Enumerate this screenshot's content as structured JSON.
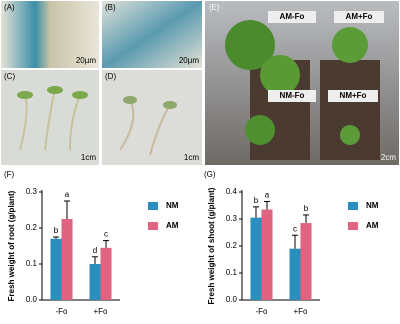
{
  "photos": [
    {
      "label": "(A)",
      "scale": "20µm"
    },
    {
      "label": "(B)",
      "scale": "20µm"
    },
    {
      "label": "(C)",
      "scale": "1cm"
    },
    {
      "label": "(D)",
      "scale": "1cm"
    },
    {
      "label": "(E)",
      "scale": "2cm",
      "tags": [
        "AM-Fo",
        "AM+Fo",
        "NM-Fo",
        "NM+Fo"
      ]
    }
  ],
  "chart_data": [
    {
      "type": "bar",
      "panel": "(F)",
      "y_label": "Fresh weight of root (g/plant)",
      "categories": [
        "-Fo",
        "+Fo"
      ],
      "series": [
        {
          "name": "NM",
          "color": "#2a8fbd",
          "values": [
            0.17,
            0.1
          ],
          "errors": [
            0.005,
            0.02
          ],
          "letters": [
            "b",
            "d"
          ]
        },
        {
          "name": "AM",
          "color": "#e0637f",
          "values": [
            0.225,
            0.145
          ],
          "errors": [
            0.05,
            0.02
          ],
          "letters": [
            "a",
            "c"
          ]
        }
      ],
      "ylim": [
        0,
        0.3
      ],
      "yticks": [
        {
          "value": 0,
          "label": "0.0"
        },
        0.1,
        0.2,
        0.3
      ]
    },
    {
      "type": "bar",
      "panel": "(G)",
      "y_label": "Fresh weight of shoot (g/plant)",
      "categories": [
        "-Fo",
        "+Fo"
      ],
      "series": [
        {
          "name": "NM",
          "color": "#2a8fbd",
          "values": [
            0.305,
            0.19
          ],
          "errors": [
            0.04,
            0.05
          ],
          "letters": [
            "b",
            "c"
          ]
        },
        {
          "name": "AM",
          "color": "#e0637f",
          "values": [
            0.335,
            0.285
          ],
          "errors": [
            0.03,
            0.03
          ],
          "letters": [
            "a",
            "b"
          ]
        }
      ],
      "ylim": [
        0,
        0.4
      ],
      "yticks": [
        {
          "value": 0,
          "label": "0.0"
        },
        0.1,
        0.2,
        0.3,
        0.4
      ]
    }
  ]
}
